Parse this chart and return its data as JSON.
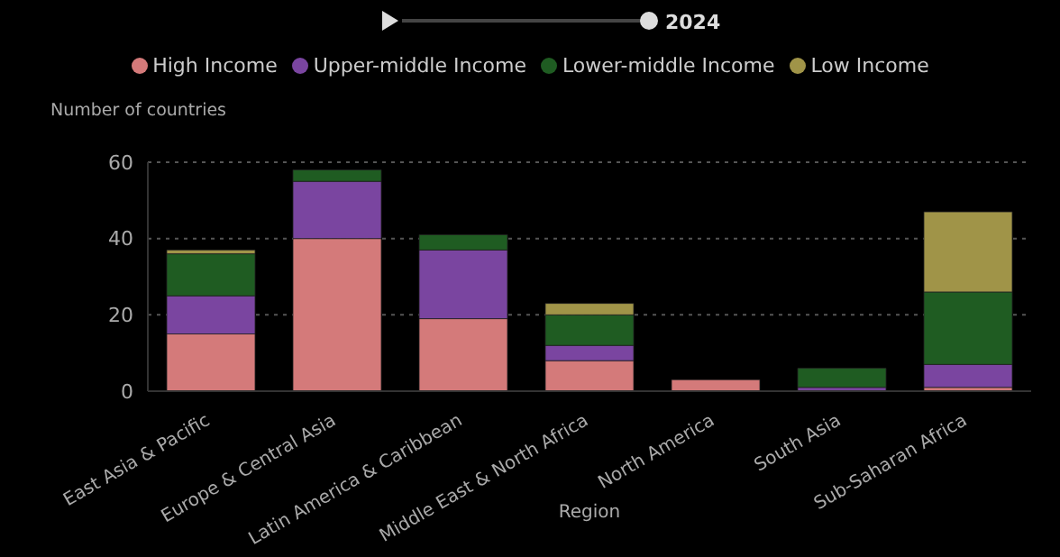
{
  "chart_data": {
    "type": "bar",
    "stacked": true,
    "xlabel": "Region",
    "ylabel": "Number of countries",
    "categories": [
      "East Asia & Pacific",
      "Europe & Central Asia",
      "Latin America & Caribbean",
      "Middle East & North Africa",
      "North America",
      "South Asia",
      "Sub-Saharan Africa"
    ],
    "series": [
      {
        "name": "High Income",
        "color": "#d47a7a",
        "values": [
          15,
          40,
          19,
          8,
          3,
          0,
          1
        ]
      },
      {
        "name": "Upper-middle Income",
        "color": "#7a45a0",
        "values": [
          10,
          15,
          18,
          4,
          0,
          1,
          6
        ]
      },
      {
        "name": "Lower-middle Income",
        "color": "#1f5c22",
        "values": [
          11,
          3,
          4,
          8,
          0,
          5,
          19
        ]
      },
      {
        "name": "Low Income",
        "color": "#a09448",
        "values": [
          1,
          0,
          0,
          3,
          0,
          0,
          21
        ]
      }
    ],
    "ylim": [
      0,
      60
    ],
    "yticks": [
      0,
      20,
      40,
      60
    ],
    "grid": "y",
    "legend": "top",
    "annotations": [
      "2024"
    ]
  }
}
